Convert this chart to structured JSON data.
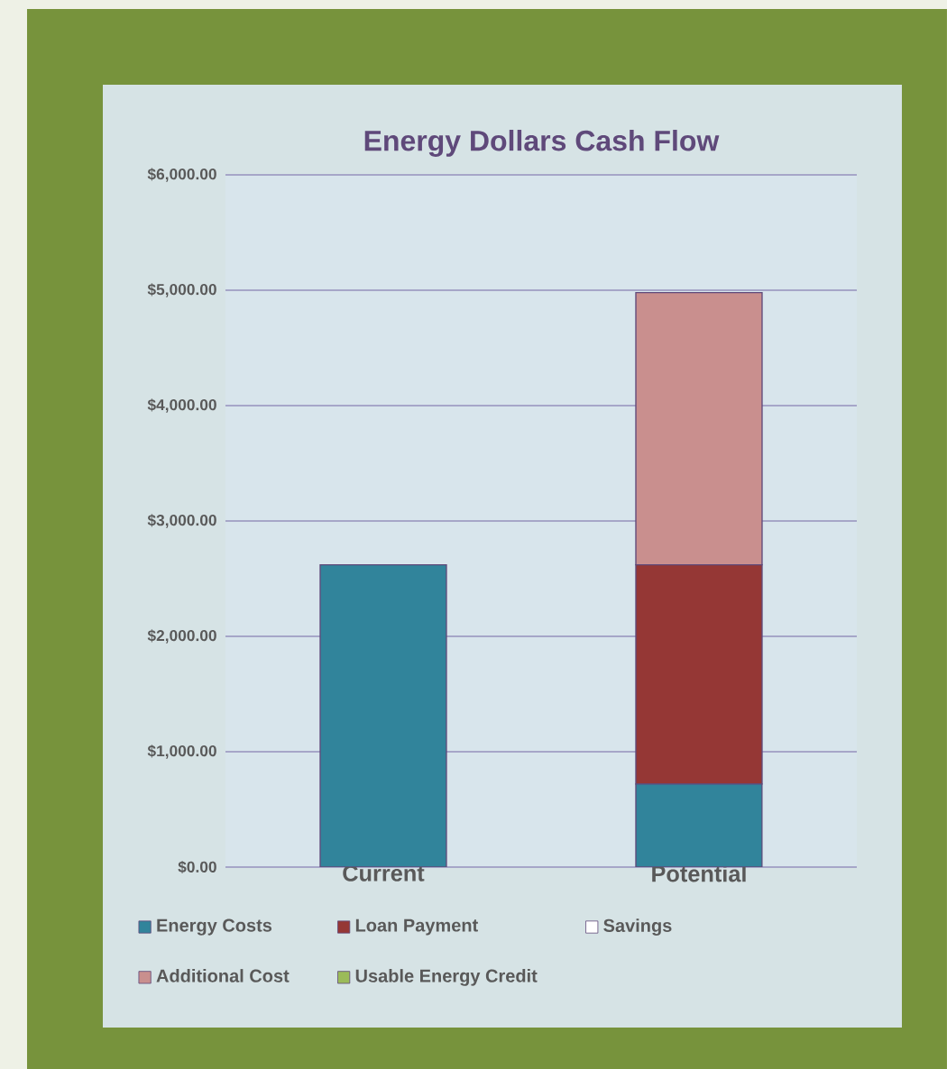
{
  "chart_data": {
    "type": "bar",
    "title": "Energy Dollars Cash Flow",
    "categories": [
      "Current",
      "Potential"
    ],
    "stacked": true,
    "series": [
      {
        "name": "Energy Costs",
        "color": "#31849b",
        "values": [
          2620,
          720
        ]
      },
      {
        "name": "Loan Payment",
        "color": "#953735",
        "values": [
          0,
          1900
        ]
      },
      {
        "name": "Savings",
        "color": "#ffffff",
        "values": [
          0,
          0
        ]
      },
      {
        "name": "Additional Cost",
        "color": "#c98f8e",
        "values": [
          0,
          2360
        ]
      },
      {
        "name": "Usable Energy Credit",
        "color": "#9bbb59",
        "values": [
          0,
          0
        ]
      }
    ],
    "ylim": [
      0,
      6000
    ],
    "yticks": [
      {
        "value": 0,
        "label": "$0.00"
      },
      {
        "value": 1000,
        "label": "$1,000.00"
      },
      {
        "value": 2000,
        "label": "$2,000.00"
      },
      {
        "value": 3000,
        "label": "$3,000.00"
      },
      {
        "value": 4000,
        "label": "$4,000.00"
      },
      {
        "value": 5000,
        "label": "$5,000.00"
      },
      {
        "value": 6000,
        "label": "$6,000.00"
      }
    ],
    "grid": "y",
    "legend": "bottom"
  }
}
